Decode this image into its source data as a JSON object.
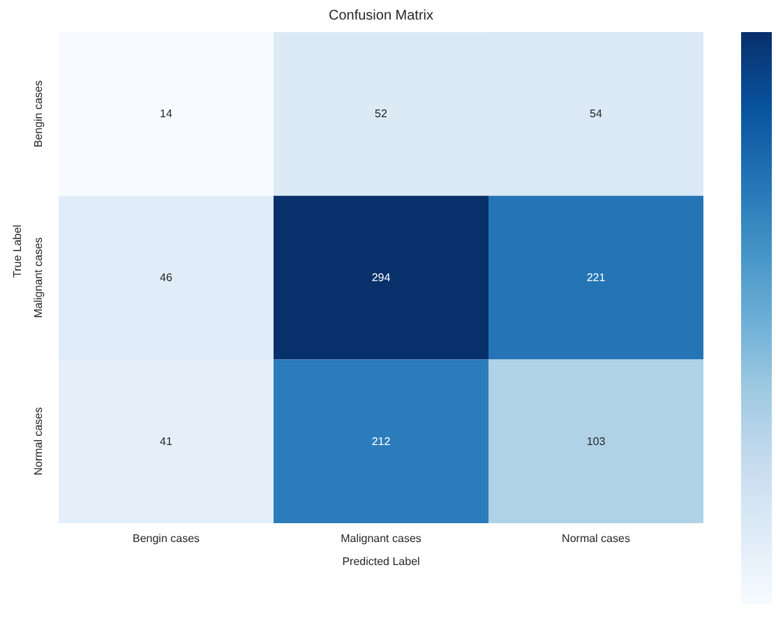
{
  "chart_data": {
    "type": "heatmap",
    "title": "Confusion Matrix",
    "xlabel": "Predicted Label",
    "ylabel": "True Label",
    "categories": [
      "Bengin cases",
      "Malignant cases",
      "Normal cases"
    ],
    "y_categories": [
      "Bengin cases",
      "Malignant cases",
      "Normal cases"
    ],
    "cells": [
      [
        14,
        52,
        54
      ],
      [
        46,
        294,
        221
      ],
      [
        41,
        212,
        103
      ]
    ],
    "data_labels": true
  }
}
